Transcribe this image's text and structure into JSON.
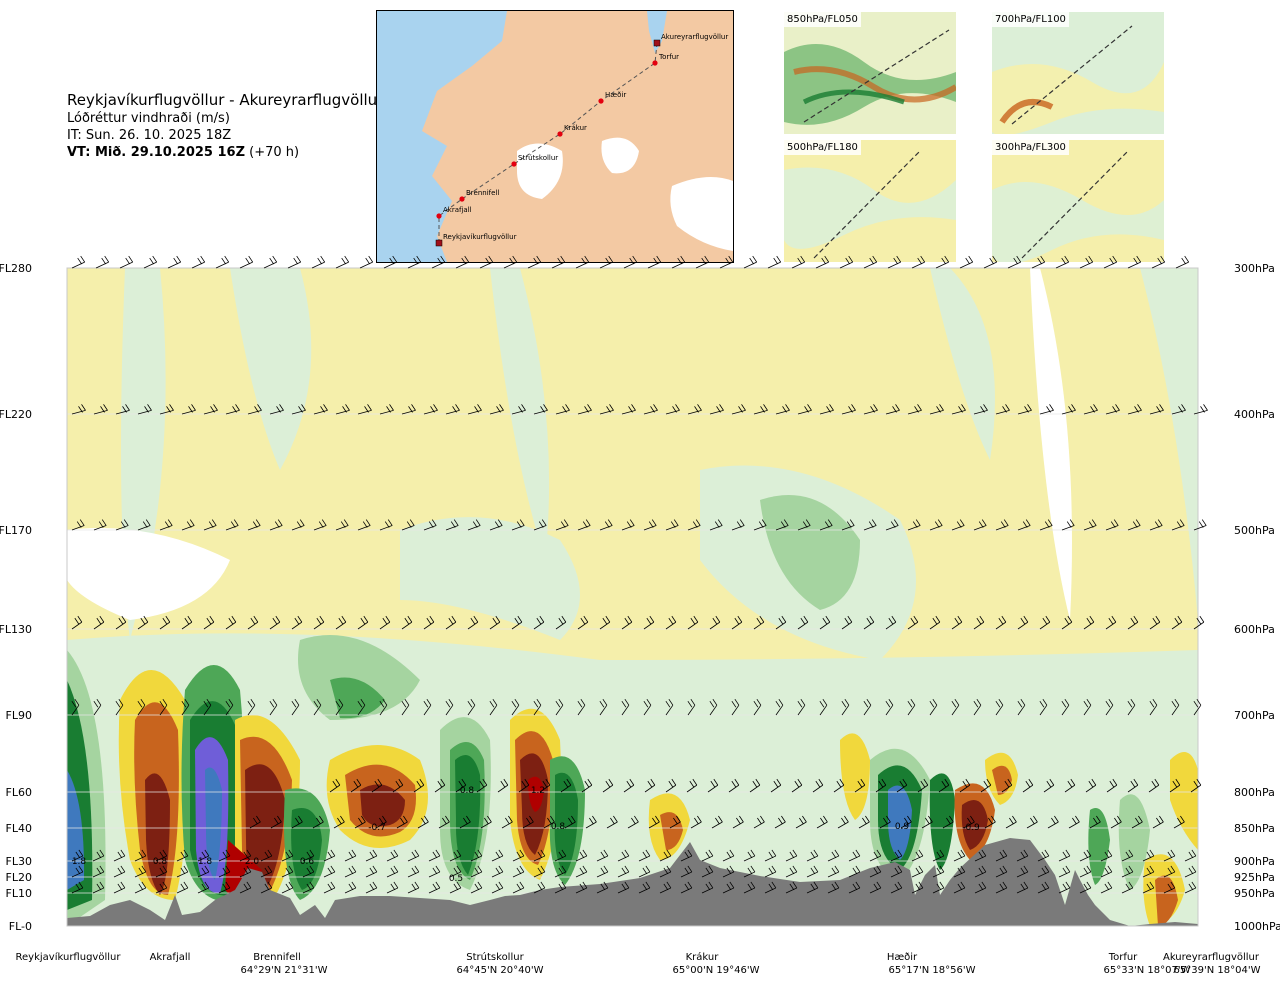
{
  "header": {
    "route": "Reykjavíkurflugvöllur - Akureyrarflugvöllur",
    "variable": "Lóðréttur vindhraði (m/s)",
    "init_time": "IT: Sun. 26. 10. 2025 18Z",
    "valid_bold": "VT: Mið. 29.10.2025 16Z",
    "valid_lead": " (+70 h)"
  },
  "map": {
    "points": [
      "Akureyrarflugvöllur",
      "Torfur",
      "Hæðir",
      "Krákur",
      "Strútskollur",
      "Brennifell",
      "Akrafjall",
      "Reykjavíkurflugvöllur"
    ],
    "colors": {
      "sea": "#a9d3ef",
      "land": "#f3c9a3",
      "ice": "#ffffff",
      "route": "#555555",
      "point": "#e3000f"
    }
  },
  "thumbnails": [
    {
      "label": "850hPa/FL050"
    },
    {
      "label": "700hPa/FL100"
    },
    {
      "label": "500hPa/FL180"
    },
    {
      "label": "300hPa/FL300"
    }
  ],
  "chart_data": {
    "type": "heatmap",
    "title": "Lóðréttur vindhraði (m/s)",
    "y_levels": [
      {
        "fl": "FL280",
        "hpa": "300hPa"
      },
      {
        "fl": "FL220",
        "hpa": "400hPa"
      },
      {
        "fl": "FL170",
        "hpa": "500hPa"
      },
      {
        "fl": "FL130",
        "hpa": "600hPa"
      },
      {
        "fl": "FL90",
        "hpa": "700hPa"
      },
      {
        "fl": "FL60",
        "hpa": "800hPa"
      },
      {
        "fl": "FL40",
        "hpa": "850hPa"
      },
      {
        "fl": "FL30",
        "hpa": "900hPa"
      },
      {
        "fl": "FL20",
        "hpa": "925hPa"
      },
      {
        "fl": "FL10",
        "hpa": "950hPa"
      },
      {
        "fl": "FL-0",
        "hpa": "1000hPa"
      }
    ],
    "x_points": [
      {
        "name": "Reykjavíkurflugvöllur",
        "coord": ""
      },
      {
        "name": "Akrafjall",
        "coord": ""
      },
      {
        "name": "Brennifell",
        "coord": "64°29'N 21°31'W"
      },
      {
        "name": "Strútskollur",
        "coord": "64°45'N 20°40'W"
      },
      {
        "name": "Krákur",
        "coord": "65°00'N 19°46'W"
      },
      {
        "name": "Hæðir",
        "coord": "65°17'N 18°56'W"
      },
      {
        "name": "Torfur",
        "coord": "65°33'N 18°07'W"
      },
      {
        "name": "Akureyrarflugvöllur",
        "coord": "65°39'N 18°04'W"
      }
    ],
    "value_labels": [
      "1.8",
      "0.8",
      "1.8",
      "2.0",
      "0.6",
      "-0.7",
      "0.8",
      "1.2",
      "0.8",
      "0.5",
      "0.9",
      "-0.9"
    ],
    "colors": {
      "strong_down": "#7d2012",
      "down": "#c8641e",
      "weak_down": "#f1d83c",
      "very_weak_down": "#f5efab",
      "neutral": "#ffffff",
      "very_weak_up": "#dcefd7",
      "weak_up": "#a5d4a0",
      "up": "#4ea757",
      "strong_up": "#197d32",
      "very_strong_up": "#3f79be",
      "extreme_up": "#6f5ed8",
      "terrain": "#7a7a7a"
    }
  }
}
